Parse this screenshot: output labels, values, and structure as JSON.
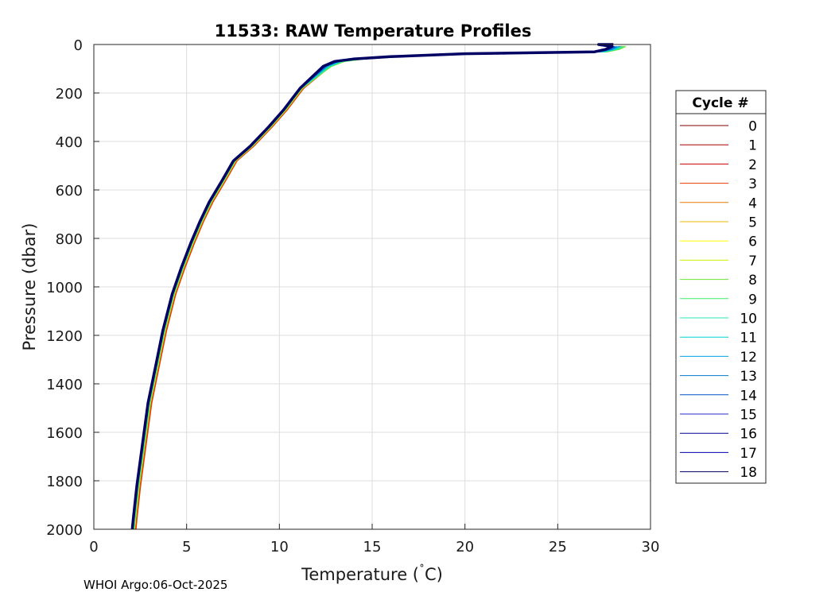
{
  "chart_data": {
    "type": "line",
    "title": "11533: RAW Temperature Profiles",
    "xlabel": "Temperature (",
    "xlabel_unit": "C)",
    "xlabel_degree": "˚",
    "ylabel": "Pressure (dbar)",
    "xlim": [
      0,
      30
    ],
    "ylim": [
      0,
      2000
    ],
    "y_reversed": true,
    "grid": true,
    "xticks": [
      0,
      5,
      10,
      15,
      20,
      25,
      30
    ],
    "yticks": [
      0,
      200,
      400,
      600,
      800,
      1000,
      1200,
      1400,
      1600,
      1800,
      2000
    ],
    "legend_title": "Cycle #",
    "legend_position": "outside-right",
    "base_profile": [
      [
        27.9,
        8
      ],
      [
        27.6,
        20
      ],
      [
        27.0,
        30
      ],
      [
        20.0,
        38
      ],
      [
        16.0,
        50
      ],
      [
        14.0,
        60
      ],
      [
        13.0,
        70
      ],
      [
        12.4,
        90
      ],
      [
        12.0,
        120
      ],
      [
        11.2,
        180
      ],
      [
        10.3,
        270
      ],
      [
        9.5,
        340
      ],
      [
        8.5,
        420
      ],
      [
        7.6,
        480
      ],
      [
        7.0,
        560
      ],
      [
        6.3,
        650
      ],
      [
        5.8,
        730
      ],
      [
        5.3,
        820
      ],
      [
        4.8,
        920
      ],
      [
        4.3,
        1030
      ],
      [
        3.8,
        1180
      ],
      [
        3.4,
        1330
      ],
      [
        3.0,
        1480
      ],
      [
        2.7,
        1650
      ],
      [
        2.4,
        1820
      ],
      [
        2.2,
        1960
      ],
      [
        2.15,
        2000
      ]
    ],
    "series": [
      {
        "name": "0",
        "color": "#800000",
        "dT_surface": 0.45,
        "dT_deep": 0.08
      },
      {
        "name": "1",
        "color": "#a80000",
        "dT_surface": 0.5,
        "dT_deep": 0.1
      },
      {
        "name": "2",
        "color": "#c80000",
        "dT_surface": 0.55,
        "dT_deep": 0.05
      },
      {
        "name": "3",
        "color": "#e63c00",
        "dT_surface": 0.6,
        "dT_deep": 0.12
      },
      {
        "name": "4",
        "color": "#e87800",
        "dT_surface": 0.65,
        "dT_deep": 0.06
      },
      {
        "name": "5",
        "color": "#f0b400",
        "dT_surface": 0.6,
        "dT_deep": 0.03
      },
      {
        "name": "6",
        "color": "#ffff00",
        "dT_surface": 0.7,
        "dT_deep": 0.04
      },
      {
        "name": "7",
        "color": "#c8f000",
        "dT_surface": 0.75,
        "dT_deep": 0.02
      },
      {
        "name": "8",
        "color": "#64e632",
        "dT_surface": 0.8,
        "dT_deep": 0.0
      },
      {
        "name": "9",
        "color": "#3cf064",
        "dT_surface": 0.7,
        "dT_deep": 0.02
      },
      {
        "name": "10",
        "color": "#28e6b4",
        "dT_surface": 0.6,
        "dT_deep": -0.02
      },
      {
        "name": "11",
        "color": "#00d2d2",
        "dT_surface": 0.5,
        "dT_deep": -0.03
      },
      {
        "name": "12",
        "color": "#00a0e6",
        "dT_surface": 0.4,
        "dT_deep": -0.04
      },
      {
        "name": "13",
        "color": "#0078c8",
        "dT_surface": 0.3,
        "dT_deep": -0.05
      },
      {
        "name": "14",
        "color": "#0050c8",
        "dT_surface": 0.2,
        "dT_deep": -0.05
      },
      {
        "name": "15",
        "color": "#2828c8",
        "dT_surface": 0.15,
        "dT_deep": -0.06
      },
      {
        "name": "16",
        "color": "#00008c",
        "dT_surface": 0.1,
        "dT_deep": -0.07
      },
      {
        "name": "17",
        "color": "#0000aa",
        "dT_surface": 0.05,
        "dT_deep": -0.06
      },
      {
        "name": "18",
        "color": "#000064",
        "dT_surface": 0.0,
        "dT_deep": -0.08
      }
    ]
  },
  "footer": "WHOI Argo:06-Oct-2025"
}
